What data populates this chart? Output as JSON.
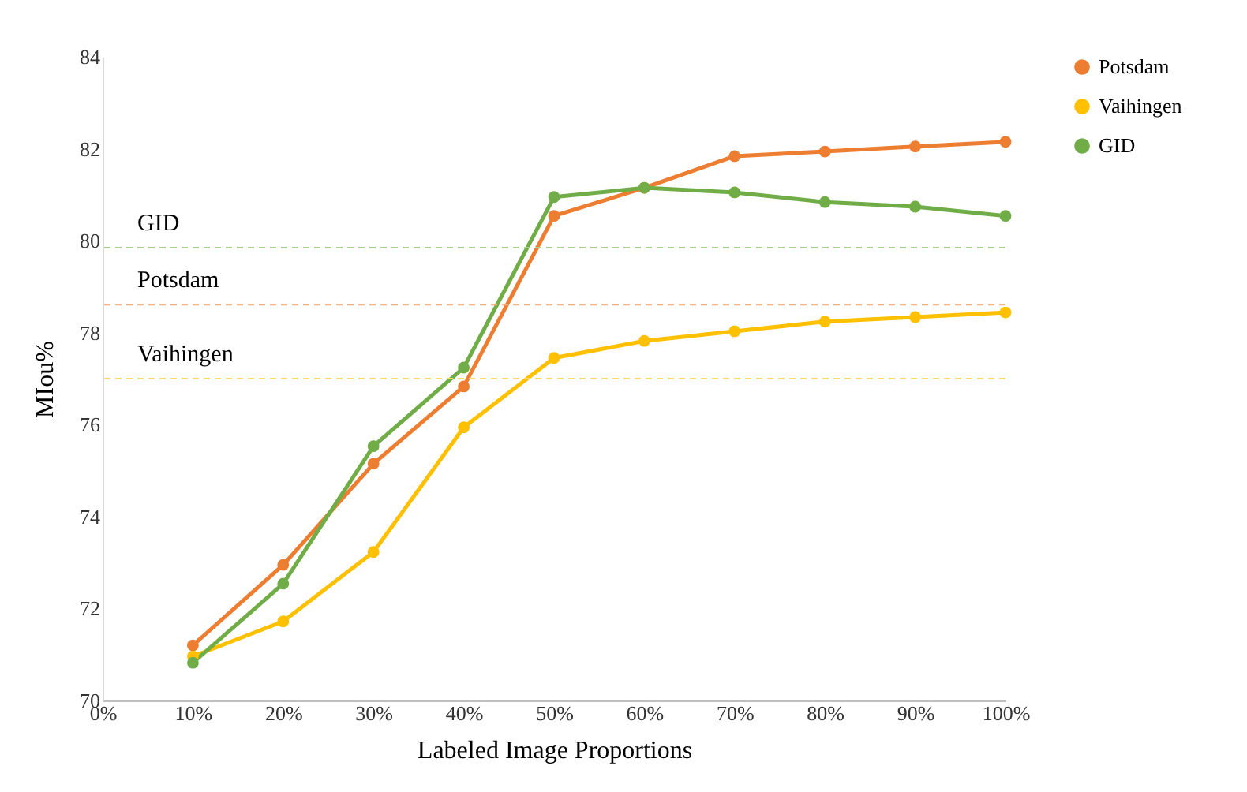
{
  "chart_data": {
    "type": "line",
    "xlabel": "Labeled Image Proportions",
    "ylabel": "MIou%",
    "x": [
      10,
      20,
      30,
      40,
      50,
      60,
      70,
      80,
      90,
      100
    ],
    "series": [
      {
        "name": "Potsdam",
        "color": "#ed7d31",
        "values": [
          71.2,
          72.95,
          75.15,
          76.83,
          80.54,
          81.15,
          81.84,
          81.94,
          82.05,
          82.15
        ]
      },
      {
        "name": "Vaihingen",
        "color": "#ffc000",
        "values": [
          70.96,
          71.72,
          73.23,
          75.94,
          77.45,
          77.82,
          78.03,
          78.24,
          78.34,
          78.44
        ]
      },
      {
        "name": "GID",
        "color": "#70ad47",
        "values": [
          70.82,
          72.54,
          75.53,
          77.24,
          80.95,
          81.15,
          81.05,
          80.84,
          80.74,
          80.54
        ]
      }
    ],
    "xlim": [
      0,
      100
    ],
    "xticks": [
      {
        "value": 0,
        "label": "0%"
      },
      {
        "value": 10,
        "label": "10%"
      },
      {
        "value": 20,
        "label": "20%"
      },
      {
        "value": 30,
        "label": "30%"
      },
      {
        "value": 40,
        "label": "40%"
      },
      {
        "value": 50,
        "label": "50%"
      },
      {
        "value": 60,
        "label": "60%"
      },
      {
        "value": 70,
        "label": "70%"
      },
      {
        "value": 80,
        "label": "80%"
      },
      {
        "value": 90,
        "label": "90%"
      },
      {
        "value": 100,
        "label": "100%"
      }
    ],
    "ylim": [
      70,
      84
    ],
    "yticks": [
      70,
      72,
      74,
      76,
      78,
      80,
      82,
      84
    ],
    "ref_lines": [
      {
        "axis": "y",
        "value": 79.85,
        "label": "GID",
        "color": "#a9d18e",
        "line_style": "dashed"
      },
      {
        "axis": "y",
        "value": 78.61,
        "label": "Potsdam",
        "color": "#f4b183",
        "line_style": "dashed"
      },
      {
        "axis": "y",
        "value": 77.0,
        "label": "Vaihingen",
        "color": "#ffd966",
        "line_style": "dashed"
      }
    ],
    "grid": false,
    "legend": "right",
    "marker": "circle",
    "line_style": "solid"
  }
}
